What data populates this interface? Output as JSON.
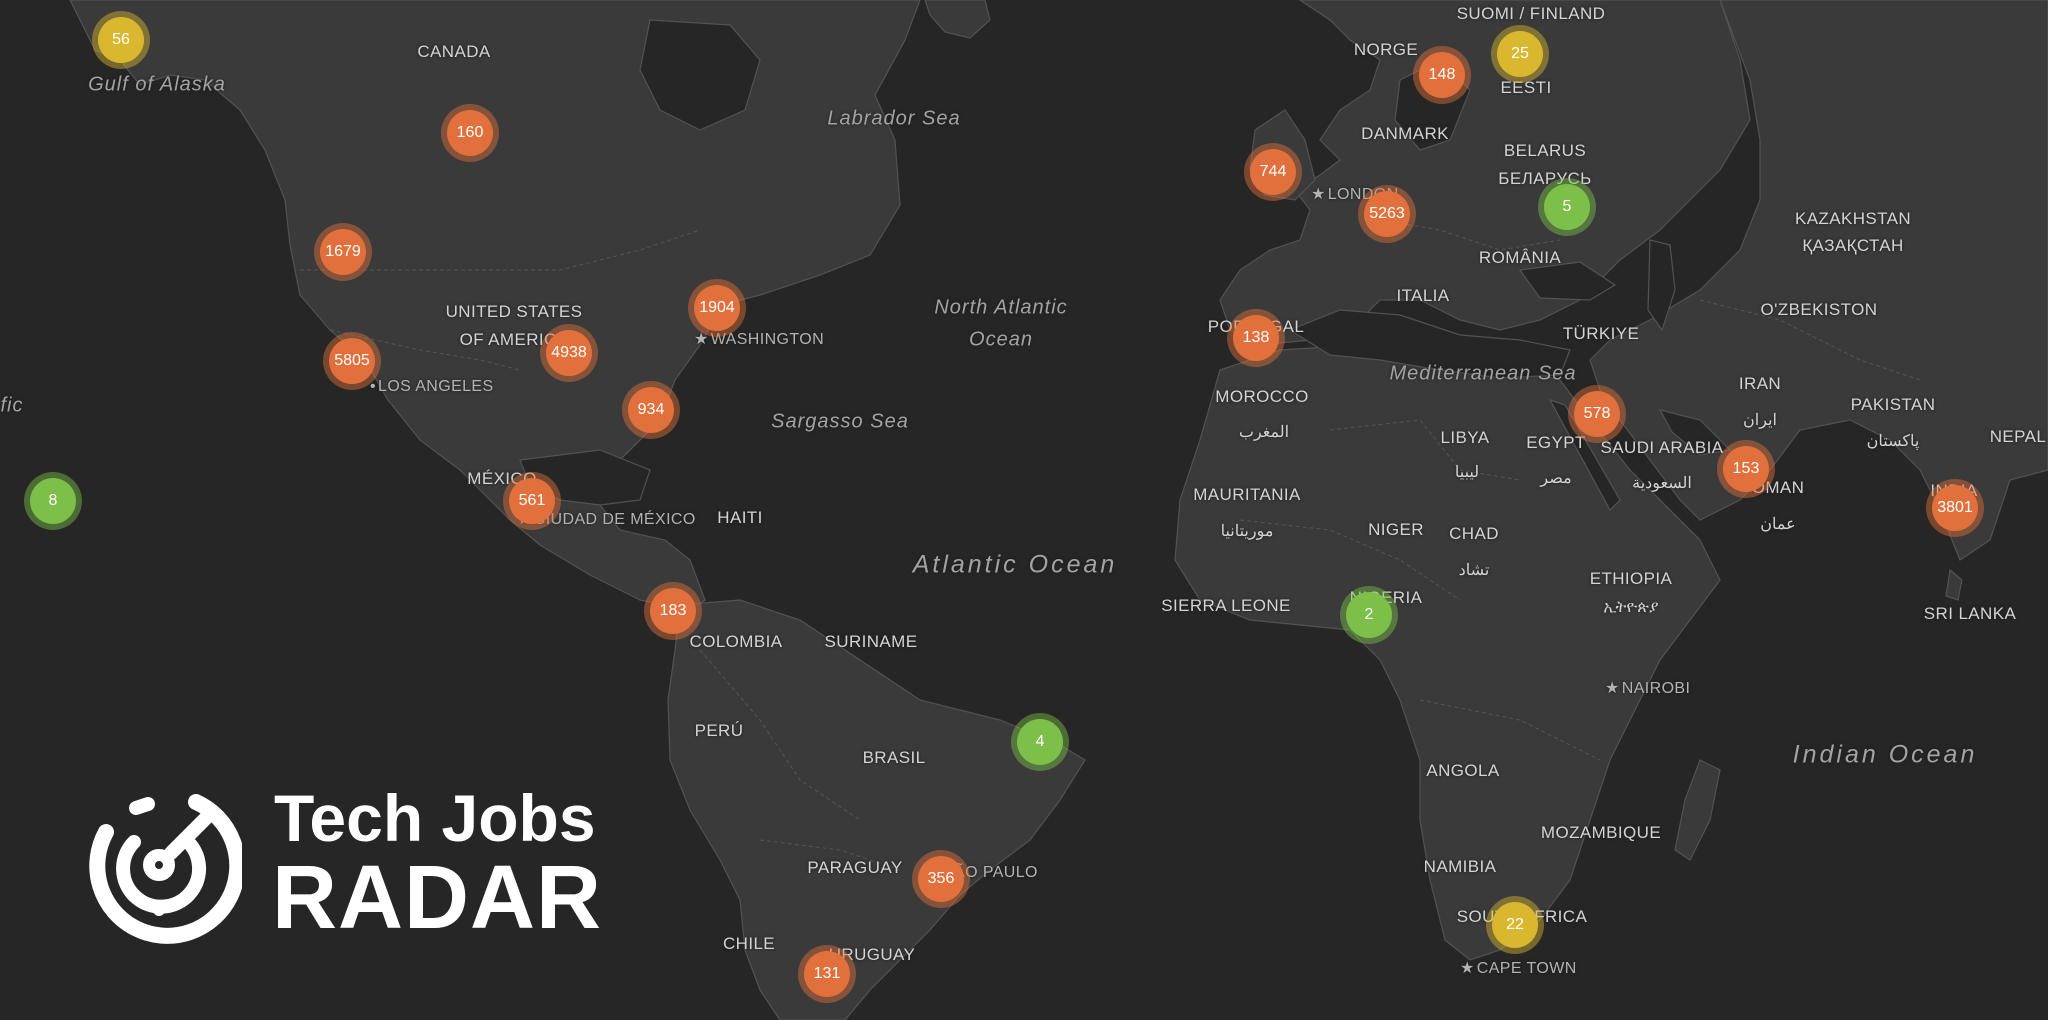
{
  "brand": {
    "line1": "Tech Jobs",
    "line2": "RADAR",
    "logo_icon": "radar-icon"
  },
  "colors": {
    "background": "#262626",
    "land": "#3b3b3b",
    "border": "#595959",
    "cluster_orange": "#e2703c",
    "cluster_green": "#7cc04a",
    "cluster_yellow": "#d9b830"
  },
  "labels": {
    "water": {
      "gulf_alaska": "Gulf of Alaska",
      "labrador": "Labrador Sea",
      "north_atlantic_1": "North Atlantic",
      "north_atlantic_2": "Ocean",
      "sargasso": "Sargasso Sea",
      "atlantic": "Atlantic Ocean",
      "mediterranean": "Mediterranean Sea",
      "indian": "Indian Ocean",
      "pacific_fragment": "fic"
    },
    "countries": {
      "canada": "CANADA",
      "usa_1": "UNITED STATES",
      "usa_2": "OF AMERICA",
      "mexico": "MÉXICO",
      "haiti": "HAITI",
      "colombia": "COLOMBIA",
      "suriname": "SURINAME",
      "peru": "PERÚ",
      "brasil": "BRASIL",
      "paraguay": "PARAGUAY",
      "chile": "CHILE",
      "uruguay": "URUGUAY",
      "suomi": "SUOMI / FINLAND",
      "norge": "NORGE",
      "eesti": "EESTI",
      "danmark": "DANMARK",
      "belarus": "BELARUS",
      "belarus_local": "БЕЛАРУСЬ",
      "romania": "ROMÂNIA",
      "italia": "ITALIA",
      "turkiye": "TÜRKIYE",
      "portugal": "PORTUGAL",
      "morocco": "MOROCCO",
      "morocco_local": "المغرب",
      "libya": "LIBYA",
      "libya_local": "ليبيا",
      "egypt": "EGYPT",
      "egypt_local": "مصر",
      "saudi": "SAUDI ARABIA",
      "saudi_local": "السعودية",
      "iran": "IRAN",
      "iran_local": "ایران",
      "pakistan": "PAKISTAN",
      "pakistan_local": "پاکستان",
      "nepal": "NEPAL",
      "oman": "OMAN",
      "oman_local": "عمان",
      "india": "INDIA",
      "sri_lanka": "SRI LANKA",
      "kazakhstan": "KAZAKHSTAN",
      "kazakhstan_local": "ҚАЗАҚСТАН",
      "uzbekistan": "O'ZBEKISTON",
      "mauritania": "MAURITANIA",
      "mauritania_local": "موريتانيا",
      "niger": "NIGER",
      "chad": "CHAD",
      "chad_local": "تشاد",
      "sierra_leone": "SIERRA LEONE",
      "nigeria": "NIGERIA",
      "ethiopia": "ETHIOPIA",
      "ethiopia_local": "ኢትዮጵያ",
      "angola": "ANGOLA",
      "mozambique": "MOZAMBIQUE",
      "namibia": "NAMIBIA",
      "south_africa": "SOUTH AFRICA"
    },
    "cities": {
      "london": "LONDON",
      "washington": "WASHINGTON",
      "los_angeles": "LOS ANGELES",
      "mexico_city": "CIUDAD DE MÉXICO",
      "nairobi": "NAIROBI",
      "sao_paulo": "SÃO PAULO",
      "cape_town": "CAPE TOWN"
    }
  },
  "clusters": [
    {
      "region": "alaska",
      "count": "56",
      "level": "yellow"
    },
    {
      "region": "canada-central",
      "count": "160",
      "level": "orange"
    },
    {
      "region": "us-northwest",
      "count": "1679",
      "level": "orange"
    },
    {
      "region": "us-california",
      "count": "5805",
      "level": "orange"
    },
    {
      "region": "us-central",
      "count": "4938",
      "level": "orange"
    },
    {
      "region": "us-northeast",
      "count": "1904",
      "level": "orange"
    },
    {
      "region": "us-southeast",
      "count": "934",
      "level": "orange"
    },
    {
      "region": "mexico",
      "count": "561",
      "level": "orange"
    },
    {
      "region": "hawaii",
      "count": "8",
      "level": "green"
    },
    {
      "region": "colombia",
      "count": "183",
      "level": "orange"
    },
    {
      "region": "brazil-northeast",
      "count": "4",
      "level": "green"
    },
    {
      "region": "brazil-south",
      "count": "356",
      "level": "orange"
    },
    {
      "region": "argentina",
      "count": "131",
      "level": "orange"
    },
    {
      "region": "uk-ireland",
      "count": "744",
      "level": "orange"
    },
    {
      "region": "western-europe",
      "count": "5263",
      "level": "orange"
    },
    {
      "region": "iberia",
      "count": "138",
      "level": "orange"
    },
    {
      "region": "scandinavia",
      "count": "148",
      "level": "orange"
    },
    {
      "region": "finland-baltics",
      "count": "25",
      "level": "yellow"
    },
    {
      "region": "belarus-ukraine",
      "count": "5",
      "level": "green"
    },
    {
      "region": "middle-east",
      "count": "578",
      "level": "orange"
    },
    {
      "region": "gulf",
      "count": "153",
      "level": "orange"
    },
    {
      "region": "india",
      "count": "3801",
      "level": "orange"
    },
    {
      "region": "nigeria",
      "count": "2",
      "level": "green"
    },
    {
      "region": "south-africa",
      "count": "22",
      "level": "yellow"
    }
  ]
}
